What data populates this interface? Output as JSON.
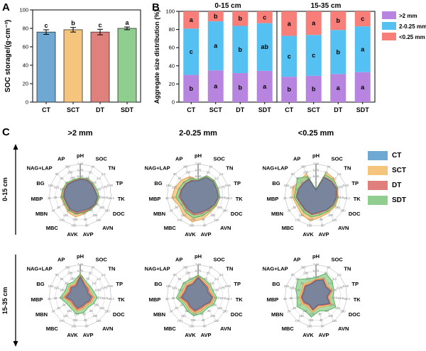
{
  "figure": {
    "panel_labels": [
      "A",
      "B",
      "C"
    ]
  },
  "chart_data": [
    {
      "id": "A",
      "type": "bar",
      "title": "",
      "ylabel": "SOC storage/(g·cm⁻³)",
      "xlabel": "",
      "ylim": [
        0,
        100
      ],
      "yticks": [
        0,
        20,
        40,
        60,
        80,
        100
      ],
      "categories": [
        "CT",
        "SCT",
        "DT",
        "SDT"
      ],
      "values": [
        76,
        78.5,
        76,
        80
      ],
      "errors": [
        2.5,
        2.5,
        3,
        1.5
      ],
      "sig_letters": [
        "c",
        "b",
        "c",
        "a"
      ],
      "bar_colors": [
        "#6FA8D2",
        "#F5C57E",
        "#E0807D",
        "#90CE90"
      ]
    },
    {
      "id": "B",
      "type": "stacked-bar",
      "ylabel": "Aggregate size distribution (%)",
      "ylim": [
        0,
        100
      ],
      "yticks": [
        0,
        20,
        40,
        60,
        80,
        100
      ],
      "legend": [
        {
          "label": ">2 mm",
          "color": "#B785E0"
        },
        {
          "label": "2-0.25 mm",
          "color": "#55C1F2"
        },
        {
          "label": "<0.25 mm",
          "color": "#F87E7A"
        }
      ],
      "groups": [
        {
          "title": "0-15 cm",
          "categories": [
            "CT",
            "SCT",
            "DT",
            "SDT"
          ],
          "series": [
            {
              "name": ">2 mm",
              "color": "#B785E0",
              "values": [
                30,
                35,
                32,
                34.5
              ],
              "letters": [
                "b",
                "a",
                "b",
                "a"
              ]
            },
            {
              "name": "2-0.25 mm",
              "color": "#55C1F2",
              "values": [
                51,
                54,
                52,
                52.5
              ],
              "letters": [
                "c",
                "a",
                "b",
                "ab"
              ]
            },
            {
              "name": "<0.25 mm",
              "color": "#F87E7A",
              "values": [
                19,
                11,
                16,
                13
              ],
              "letters": [
                "a",
                "b",
                "b",
                "c"
              ]
            }
          ]
        },
        {
          "title": "15-35 cm",
          "categories": [
            "CT",
            "SCT",
            "DT",
            "SDT"
          ],
          "series": [
            {
              "name": ">2 mm",
              "color": "#B785E0",
              "values": [
                28,
                29,
                31,
                33
              ],
              "letters": [
                "b",
                "b",
                "a",
                "a"
              ]
            },
            {
              "name": "2-0.25 mm",
              "color": "#55C1F2",
              "values": [
                45,
                45,
                48.5,
                50.5
              ],
              "letters": [
                "c",
                "c",
                "b",
                "a"
              ]
            },
            {
              "name": "<0.25 mm",
              "color": "#F87E7A",
              "values": [
                27,
                26,
                20.5,
                16.5
              ],
              "letters": [
                "a",
                "a",
                "b",
                "c"
              ]
            }
          ]
        }
      ]
    },
    {
      "id": "C",
      "type": "radar-grid",
      "row_labels": [
        "0-15 cm",
        "15-35 cm"
      ],
      "col_titles": [
        ">2 mm",
        "2-0.25 mm",
        "<0.25 mm"
      ],
      "axes": [
        "pH",
        "SOC",
        "TN",
        "TP",
        "TK",
        "DOC",
        "AVN",
        "AVP",
        "AVK",
        "MBC",
        "MBN",
        "MBP",
        "BG",
        "NAG+LAP",
        "AP"
      ],
      "axis_ticks": [
        [
          "7.00",
          "6.75",
          "6.50"
        ],
        [
          "24",
          "20",
          "16"
        ],
        [
          "2.4",
          "2.1",
          "1.8"
        ],
        [
          "0.90",
          "0.75",
          "0.60"
        ],
        [
          "25.0",
          "22.5",
          "20.0"
        ],
        [
          "280",
          "240",
          "200"
        ],
        [
          "120",
          "105",
          "90"
        ],
        [
          "60",
          "45",
          "30"
        ],
        [
          "165",
          "150",
          "135"
        ],
        [
          "170",
          "140",
          "110"
        ],
        [
          "24",
          "20",
          "16"
        ],
        [
          "32",
          "28",
          "24"
        ],
        [
          "150",
          "125",
          "100"
        ],
        [
          "80",
          "60",
          "40"
        ],
        [
          "300",
          "280",
          "260"
        ]
      ],
      "radius_scale": "series values are fractions of the outer ring radius",
      "legend": [
        {
          "name": "CT",
          "color": "#6FA8D2"
        },
        {
          "name": "SCT",
          "color": "#F5C57E"
        },
        {
          "name": "DT",
          "color": "#E0807D"
        },
        {
          "name": "SDT",
          "color": "#90CE90"
        }
      ],
      "series_styles": {
        "CT": {
          "fill": "#74859D",
          "stroke": "#54687F",
          "opacity": 0.95
        },
        "SCT": {
          "fill": "#F6C683",
          "stroke": "#E8A14E",
          "opacity": 0.85
        },
        "DT": {
          "fill": "#E2827F",
          "stroke": "#C95A57",
          "opacity": 0.85
        },
        "SDT": {
          "fill": "#93D393",
          "stroke": "#58B35C",
          "opacity": 0.8
        }
      },
      "charts": [
        {
          "title": ">2 mm",
          "row": "0-15 cm",
          "order": [
            "SCT",
            "SDT",
            "DT",
            "CT"
          ],
          "series": {
            "CT": [
              0.5,
              0.52,
              0.5,
              0.48,
              0.55,
              0.55,
              0.52,
              0.5,
              0.55,
              0.55,
              0.5,
              0.52,
              0.52,
              0.52,
              0.48
            ],
            "DT": [
              0.52,
              0.54,
              0.52,
              0.5,
              0.57,
              0.57,
              0.55,
              0.55,
              0.6,
              0.58,
              0.52,
              0.55,
              0.54,
              0.54,
              0.5
            ],
            "SDT": [
              0.55,
              0.58,
              0.56,
              0.56,
              0.62,
              0.6,
              0.58,
              0.58,
              0.63,
              0.62,
              0.57,
              0.6,
              0.58,
              0.58,
              0.54
            ],
            "SCT": [
              0.53,
              0.56,
              0.54,
              0.52,
              0.58,
              0.58,
              0.57,
              0.62,
              0.72,
              0.68,
              0.6,
              0.63,
              0.6,
              0.58,
              0.52
            ]
          }
        },
        {
          "title": "2-0.25 mm",
          "row": "0-15 cm",
          "order": [
            "SCT",
            "SDT",
            "DT",
            "CT"
          ],
          "series": {
            "CT": [
              0.45,
              0.62,
              0.65,
              0.62,
              0.65,
              0.6,
              0.55,
              0.55,
              0.6,
              0.55,
              0.52,
              0.58,
              0.55,
              0.52,
              0.5
            ],
            "DT": [
              0.46,
              0.63,
              0.66,
              0.63,
              0.66,
              0.62,
              0.58,
              0.6,
              0.65,
              0.6,
              0.55,
              0.62,
              0.57,
              0.54,
              0.52
            ],
            "SDT": [
              0.5,
              0.68,
              0.7,
              0.68,
              0.7,
              0.66,
              0.63,
              0.68,
              0.75,
              0.68,
              0.62,
              0.72,
              0.65,
              0.62,
              0.58
            ],
            "SCT": [
              0.48,
              0.66,
              0.68,
              0.66,
              0.7,
              0.68,
              0.68,
              0.78,
              0.88,
              0.8,
              0.7,
              0.85,
              0.78,
              0.72,
              0.65
            ]
          }
        },
        {
          "title": "<0.25 mm",
          "row": "0-15 cm",
          "order": [
            "SCT",
            "SDT",
            "DT",
            "CT"
          ],
          "series": {
            "CT": [
              0.15,
              0.62,
              0.65,
              0.68,
              0.65,
              0.62,
              0.58,
              0.55,
              0.62,
              0.58,
              0.55,
              0.62,
              0.58,
              0.55,
              0.55
            ],
            "DT": [
              0.16,
              0.64,
              0.67,
              0.7,
              0.67,
              0.64,
              0.6,
              0.58,
              0.65,
              0.6,
              0.57,
              0.64,
              0.6,
              0.57,
              0.57
            ],
            "SDT": [
              0.18,
              0.72,
              0.73,
              0.74,
              0.7,
              0.68,
              0.65,
              0.65,
              0.72,
              0.68,
              0.63,
              0.7,
              0.68,
              0.8,
              0.65
            ],
            "SCT": [
              0.17,
              0.8,
              0.78,
              0.72,
              0.72,
              0.72,
              0.7,
              0.72,
              0.85,
              0.78,
              0.7,
              0.75,
              0.78,
              0.7,
              0.75
            ]
          }
        },
        {
          "title": ">2 mm",
          "row": "15-35 cm",
          "order": [
            "SDT",
            "SCT",
            "DT",
            "CT"
          ],
          "series": {
            "CT": [
              0.6,
              0.35,
              0.3,
              0.25,
              0.35,
              0.33,
              0.28,
              0.33,
              0.4,
              0.33,
              0.3,
              0.45,
              0.33,
              0.38,
              0.33
            ],
            "DT": [
              0.63,
              0.38,
              0.34,
              0.3,
              0.4,
              0.37,
              0.32,
              0.38,
              0.45,
              0.37,
              0.35,
              0.5,
              0.37,
              0.42,
              0.37
            ],
            "SCT": [
              0.66,
              0.42,
              0.38,
              0.35,
              0.45,
              0.42,
              0.37,
              0.44,
              0.5,
              0.42,
              0.4,
              0.55,
              0.42,
              0.47,
              0.42
            ],
            "SDT": [
              0.7,
              0.48,
              0.44,
              0.45,
              0.55,
              0.5,
              0.45,
              0.55,
              0.6,
              0.5,
              0.5,
              0.65,
              0.5,
              0.55,
              0.5
            ]
          }
        },
        {
          "title": "2-0.25 mm",
          "row": "15-35 cm",
          "order": [
            "SDT",
            "SCT",
            "DT",
            "CT"
          ],
          "series": {
            "CT": [
              0.58,
              0.42,
              0.38,
              0.33,
              0.45,
              0.42,
              0.35,
              0.38,
              0.48,
              0.42,
              0.38,
              0.52,
              0.42,
              0.45,
              0.4
            ],
            "DT": [
              0.6,
              0.45,
              0.42,
              0.37,
              0.48,
              0.45,
              0.38,
              0.43,
              0.52,
              0.46,
              0.42,
              0.56,
              0.46,
              0.48,
              0.44
            ],
            "SCT": [
              0.63,
              0.5,
              0.47,
              0.42,
              0.53,
              0.5,
              0.43,
              0.5,
              0.58,
              0.52,
              0.47,
              0.62,
              0.52,
              0.54,
              0.5
            ],
            "SDT": [
              0.66,
              0.56,
              0.53,
              0.5,
              0.6,
              0.57,
              0.5,
              0.58,
              0.66,
              0.6,
              0.55,
              0.7,
              0.6,
              0.62,
              0.58
            ]
          }
        },
        {
          "title": "<0.25 mm",
          "row": "15-35 cm",
          "order": [
            "SDT",
            "SCT",
            "DT",
            "CT"
          ],
          "series": {
            "CT": [
              0.48,
              0.55,
              0.42,
              0.48,
              0.35,
              0.5,
              0.35,
              0.3,
              0.45,
              0.35,
              0.42,
              0.45,
              0.4,
              0.45,
              0.4
            ],
            "DT": [
              0.5,
              0.58,
              0.45,
              0.52,
              0.38,
              0.53,
              0.38,
              0.33,
              0.48,
              0.38,
              0.46,
              0.48,
              0.43,
              0.48,
              0.43
            ],
            "SCT": [
              0.53,
              0.63,
              0.5,
              0.56,
              0.43,
              0.58,
              0.43,
              0.4,
              0.55,
              0.44,
              0.52,
              0.53,
              0.48,
              0.55,
              0.48
            ],
            "SDT": [
              0.58,
              0.78,
              0.7,
              0.6,
              0.55,
              0.73,
              0.6,
              0.5,
              0.7,
              0.6,
              0.7,
              0.6,
              0.68,
              0.78,
              0.6
            ]
          }
        }
      ]
    }
  ]
}
